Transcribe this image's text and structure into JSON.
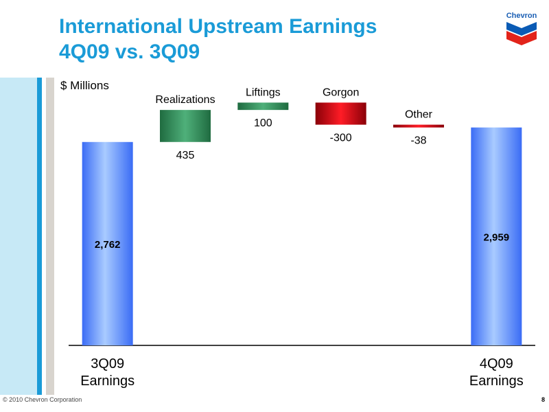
{
  "slide": {
    "title_line1": "International Upstream Earnings",
    "title_line2": "4Q09 vs. 3Q09",
    "unit_label": "$ Millions",
    "logo_text": "Chevron",
    "copyright": "© 2010 Chevron Corporation",
    "page_number": "8"
  },
  "colors": {
    "title": "#1a9bd7",
    "total_bar": "#5b8fff",
    "positive_bar": "#2f8c5a",
    "negative_bar": "#e0000e"
  },
  "chart_data": {
    "type": "waterfall",
    "y_range": [
      0,
      3450
    ],
    "bars": [
      {
        "category_lines": [
          "3Q09",
          "Earnings"
        ],
        "kind": "total",
        "start": 0,
        "value": 2762,
        "value_label": "2,762"
      },
      {
        "category_lines": [
          "Realizations"
        ],
        "kind": "increase",
        "start": 2762,
        "value": 435,
        "value_label": "435"
      },
      {
        "category_lines": [
          "Liftings"
        ],
        "kind": "increase",
        "start": 3197,
        "value": 100,
        "value_label": "100"
      },
      {
        "category_lines": [
          "Gorgon"
        ],
        "kind": "decrease",
        "start": 3297,
        "value": -300,
        "value_label": "-300"
      },
      {
        "category_lines": [
          "Other"
        ],
        "kind": "decrease",
        "start": 2997,
        "value": -38,
        "value_label": "-38"
      },
      {
        "category_lines": [
          "4Q09",
          "Earnings"
        ],
        "kind": "total",
        "start": 0,
        "value": 2959,
        "value_label": "2,959"
      }
    ]
  }
}
